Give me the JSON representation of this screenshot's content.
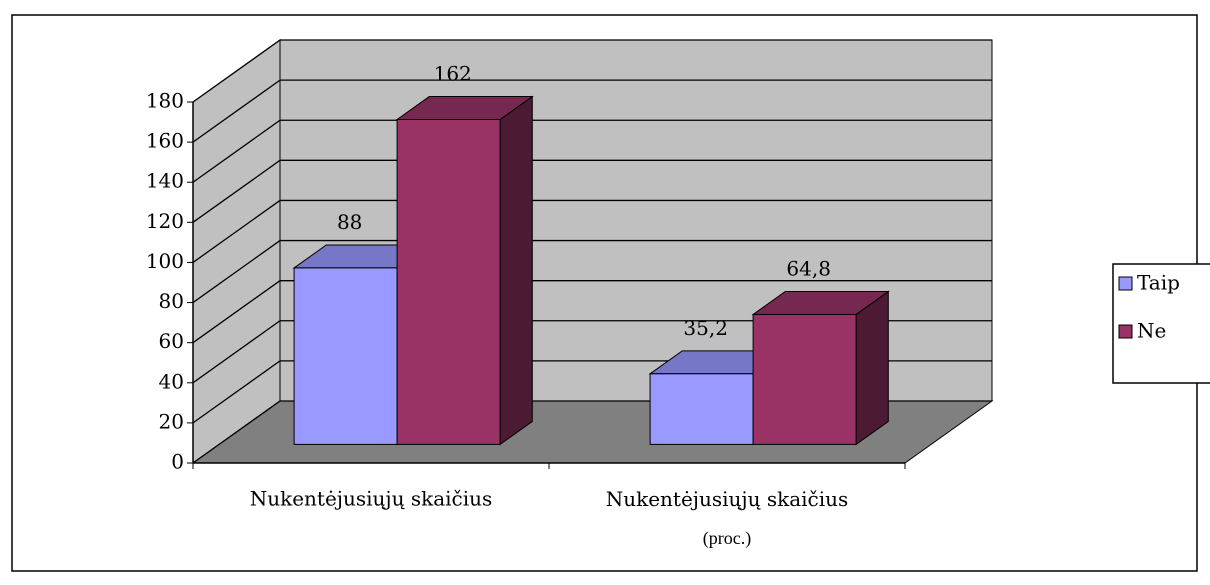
{
  "chart_data": {
    "type": "bar3d",
    "categories": [
      "Nukentėjusiųjų skaičius",
      "Nukentėjusiųjų skaičius (proc.)"
    ],
    "series": [
      {
        "name": "Taip",
        "color": "#9999ff",
        "values": [
          88,
          35.2
        ],
        "value_labels": [
          "88",
          "35,2"
        ]
      },
      {
        "name": "Ne",
        "color": "#993366",
        "values": [
          162,
          64.8
        ],
        "value_labels": [
          "162",
          "64,8"
        ]
      }
    ],
    "ylim": [
      0,
      180
    ],
    "yticks": [
      0,
      20,
      40,
      60,
      80,
      100,
      120,
      140,
      160,
      180
    ],
    "grid": true,
    "legend": "right"
  }
}
